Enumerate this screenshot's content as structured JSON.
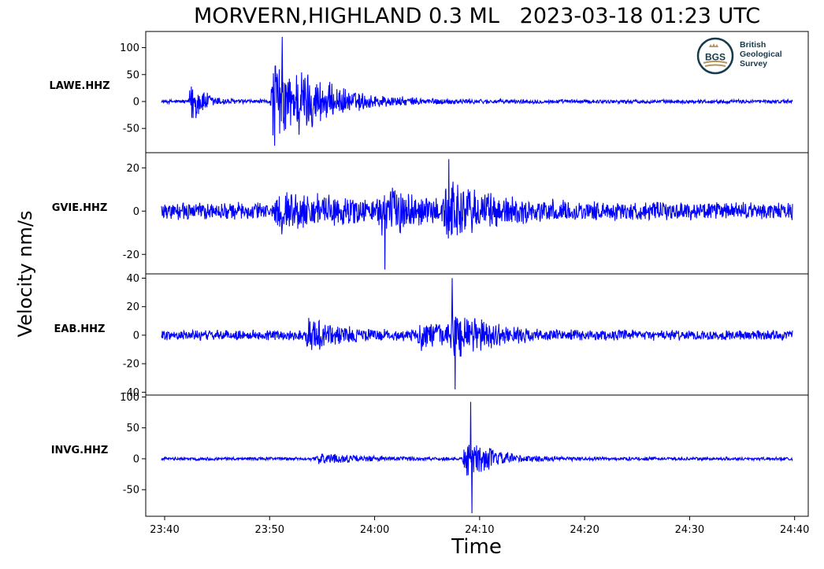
{
  "title": "MORVERN,HIGHLAND 0.3 ML   2023-03-18 01:23 UTC",
  "ylabel": "Velocity nm/s",
  "xlabel": "Time",
  "logo": {
    "abbr": "BGS",
    "lines": [
      "British",
      "Geological",
      "Survey"
    ],
    "colors": {
      "ring": "#173a4c",
      "gold": "#b4955b"
    }
  },
  "chart_data": {
    "type": "line",
    "x_axis": {
      "ticks": [
        "23:40",
        "23:50",
        "24:00",
        "24:10",
        "24:20",
        "24:30",
        "24:40"
      ],
      "tick_minutes": [
        0,
        10,
        20,
        30,
        40,
        50,
        60
      ],
      "range_minutes": [
        -1.8,
        61.3
      ]
    },
    "trace_color": "#0000ff",
    "trace_span_minutes": [
      -0.3,
      59.8
    ],
    "panels": [
      {
        "station": "LAWE.HHZ",
        "ylim": [
          -95,
          130
        ],
        "yticks": [
          100,
          50,
          0,
          -50
        ],
        "ytick_labels": [
          "100",
          "50",
          "0",
          "-50"
        ],
        "noise_level": 4,
        "events": [
          {
            "t": 2.4,
            "amp": 60,
            "decay": 1.2
          },
          {
            "t": 10.2,
            "amp": 110,
            "decay": 2.8
          },
          {
            "t": 12.5,
            "amp": 35,
            "decay": 5
          }
        ],
        "peak_max": 120,
        "peak_min": -82
      },
      {
        "station": "GVIE.HHZ",
        "ylim": [
          -29,
          27
        ],
        "yticks": [
          20,
          0,
          -20
        ],
        "ytick_labels": [
          "20",
          "0",
          "-20"
        ],
        "noise_level": 4.5,
        "events": [
          {
            "t": 10.5,
            "amp": 7,
            "decay": 8
          },
          {
            "t": 20.5,
            "amp": 10,
            "decay": 3
          },
          {
            "t": 26.5,
            "amp": 13,
            "decay": 4
          }
        ],
        "peak_max": 24,
        "peak_min": -27
      },
      {
        "station": "EAB.HHZ",
        "ylim": [
          -42,
          43
        ],
        "yticks": [
          40,
          20,
          0,
          -20,
          -40
        ],
        "ytick_labels": [
          "40",
          "20",
          "0",
          "-20",
          "-40"
        ],
        "noise_level": 4,
        "events": [
          {
            "t": 13.5,
            "amp": 14,
            "decay": 2.5
          },
          {
            "t": 24.2,
            "amp": 10,
            "decay": 3
          },
          {
            "t": 27.3,
            "amp": 22,
            "decay": 2.5
          }
        ],
        "peak_max": 40,
        "peak_min": -38
      },
      {
        "station": "INVG.HHZ",
        "ylim": [
          -93,
          103
        ],
        "yticks": [
          100,
          50,
          0,
          -50
        ],
        "ytick_labels": [
          "100",
          "50",
          "0",
          "-50"
        ],
        "noise_level": 3,
        "events": [
          {
            "t": 14.5,
            "amp": 9,
            "decay": 4
          },
          {
            "t": 28.5,
            "amp": 45,
            "decay": 2.5
          }
        ],
        "peak_max": 92,
        "peak_min": -88
      }
    ]
  }
}
